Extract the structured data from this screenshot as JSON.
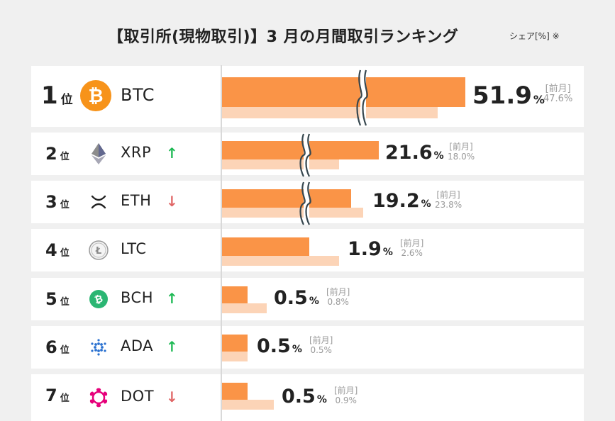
{
  "header": {
    "title": "【取引所(現物取引)】3 月の月間取引ランキング",
    "subtitle": "シェア[%] ※"
  },
  "prev_month_label": "[前月]",
  "rank_unit": "位",
  "colors": {
    "current_bar": "#fa9447",
    "previous_bar": "#fcd4b7",
    "up_arrow": "#1db954",
    "down_arrow": "#e06666"
  },
  "chart_data": {
    "type": "bar",
    "orientation": "horizontal",
    "title": "【取引所(現物取引)】3 月の月間取引ランキング",
    "unit": "シェア[%]",
    "categories": [
      "BTC",
      "XRP",
      "ETH",
      "LTC",
      "BCH",
      "ADA",
      "DOT"
    ],
    "series": [
      {
        "name": "3月",
        "values": [
          51.9,
          21.6,
          19.2,
          1.9,
          0.5,
          0.5,
          0.5
        ]
      },
      {
        "name": "前月",
        "values": [
          47.6,
          18.0,
          23.8,
          2.6,
          0.8,
          0.5,
          0.9
        ]
      }
    ],
    "axis_breaks": [
      "BTC",
      "XRP",
      "ETH"
    ]
  },
  "rows": [
    {
      "rank": "1",
      "ticker": "BTC",
      "icon": "bitcoin-icon",
      "trend": "",
      "value": "51.9",
      "prev": "47.6%"
    },
    {
      "rank": "2",
      "ticker": "XRP",
      "icon": "ethereum-icon",
      "trend": "up",
      "value": "21.6",
      "prev": "18.0%"
    },
    {
      "rank": "3",
      "ticker": "ETH",
      "icon": "xrp-icon",
      "trend": "down",
      "value": "19.2",
      "prev": "23.8%"
    },
    {
      "rank": "4",
      "ticker": "LTC",
      "icon": "litecoin-icon",
      "trend": "",
      "value": "1.9",
      "prev": "2.6%"
    },
    {
      "rank": "5",
      "ticker": "BCH",
      "icon": "bitcoin-cash-icon",
      "trend": "up",
      "value": "0.5",
      "prev": "0.8%"
    },
    {
      "rank": "6",
      "ticker": "ADA",
      "icon": "cardano-icon",
      "trend": "up",
      "value": "0.5",
      "prev": "0.5%"
    },
    {
      "rank": "7",
      "ticker": "DOT",
      "icon": "polkadot-icon",
      "trend": "down",
      "value": "0.5",
      "prev": "0.9%"
    }
  ],
  "percent_sign": "%"
}
